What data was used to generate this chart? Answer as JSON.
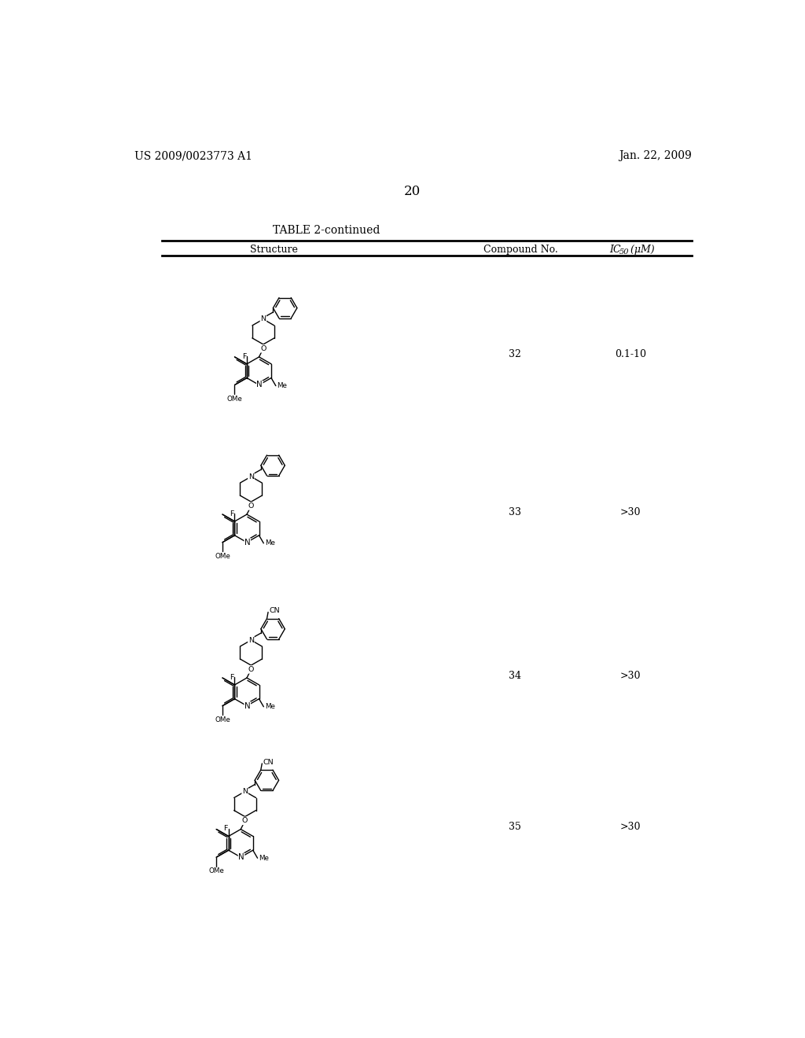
{
  "title_left": "US 2009/0023773 A1",
  "title_right": "Jan. 22, 2009",
  "page_number": "20",
  "table_title": "TABLE 2-continued",
  "col1_header": "Structure",
  "col2_header": "Compound No.",
  "col3_header": "IC₅₀ (μM)",
  "rows": [
    {
      "compound_no": "32",
      "ic50": "0.1-10"
    },
    {
      "compound_no": "33",
      "ic50": ">30"
    },
    {
      "compound_no": "34",
      "ic50": ">30"
    },
    {
      "compound_no": "35",
      "ic50": ">30"
    }
  ],
  "background_color": "#ffffff",
  "text_color": "#000000",
  "line_color": "#000000"
}
